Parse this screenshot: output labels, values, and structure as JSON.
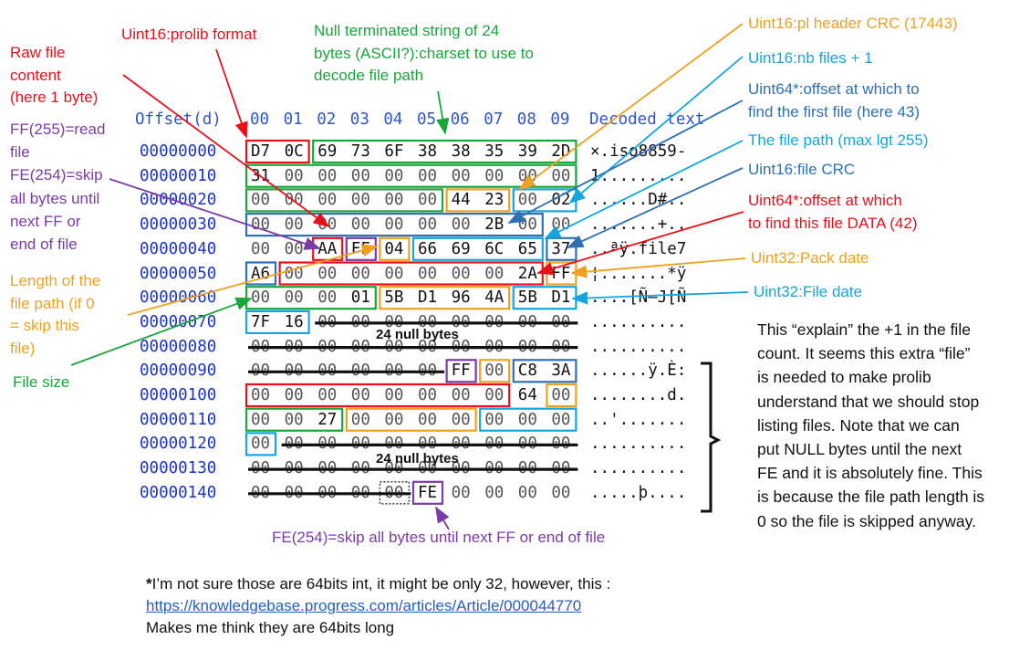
{
  "header": {
    "offset": "Offset(d)",
    "cols": [
      "00",
      "01",
      "02",
      "03",
      "04",
      "05",
      "06",
      "07",
      "08",
      "09"
    ],
    "decoded": "Decoded text"
  },
  "rows": [
    {
      "off": "00000000",
      "bytes": [
        "D7",
        "0C",
        "69",
        "73",
        "6F",
        "38",
        "38",
        "35",
        "39",
        "2D"
      ],
      "text": "×.iso8859-"
    },
    {
      "off": "00000010",
      "bytes": [
        "31",
        "00",
        "00",
        "00",
        "00",
        "00",
        "00",
        "00",
        "00",
        "00"
      ],
      "text": "1........."
    },
    {
      "off": "00000020",
      "bytes": [
        "00",
        "00",
        "00",
        "00",
        "00",
        "00",
        "44",
        "23",
        "00",
        "02"
      ],
      "text": "......D#.."
    },
    {
      "off": "00000030",
      "bytes": [
        "00",
        "00",
        "00",
        "00",
        "00",
        "00",
        "00",
        "2B",
        "00",
        "00"
      ],
      "text": ".......+.."
    },
    {
      "off": "00000040",
      "bytes": [
        "00",
        "00",
        "AA",
        "FF",
        "04",
        "66",
        "69",
        "6C",
        "65",
        "37"
      ],
      "text": "..ªÿ.file7"
    },
    {
      "off": "00000050",
      "bytes": [
        "A6",
        "00",
        "00",
        "00",
        "00",
        "00",
        "00",
        "00",
        "2A",
        "FF"
      ],
      "text": "¦.......*ÿ"
    },
    {
      "off": "00000060",
      "bytes": [
        "00",
        "00",
        "00",
        "01",
        "5B",
        "D1",
        "96",
        "4A",
        "5B",
        "D1"
      ],
      "text": "....[Ñ–J[Ñ"
    },
    {
      "off": "00000070",
      "bytes": [
        "7F",
        "16",
        "00",
        "00",
        "00",
        "00",
        "00",
        "00",
        "00",
        "00"
      ],
      "text": ".........."
    },
    {
      "off": "00000080",
      "bytes": [
        "00",
        "00",
        "00",
        "00",
        "00",
        "00",
        "00",
        "00",
        "00",
        "00"
      ],
      "text": ".........."
    },
    {
      "off": "00000090",
      "bytes": [
        "00",
        "00",
        "00",
        "00",
        "00",
        "00",
        "FF",
        "00",
        "C8",
        "3A"
      ],
      "text": "......ÿ.È:"
    },
    {
      "off": "00000100",
      "bytes": [
        "00",
        "00",
        "00",
        "00",
        "00",
        "00",
        "00",
        "00",
        "64",
        "00"
      ],
      "text": "........d."
    },
    {
      "off": "00000110",
      "bytes": [
        "00",
        "00",
        "27",
        "00",
        "00",
        "00",
        "00",
        "00",
        "00",
        "00"
      ],
      "text": "..'......."
    },
    {
      "off": "00000120",
      "bytes": [
        "00",
        "00",
        "00",
        "00",
        "00",
        "00",
        "00",
        "00",
        "00",
        "00"
      ],
      "text": ".........."
    },
    {
      "off": "00000130",
      "bytes": [
        "00",
        "00",
        "00",
        "00",
        "00",
        "00",
        "00",
        "00",
        "00",
        "00"
      ],
      "text": ".........."
    },
    {
      "off": "00000140",
      "bytes": [
        "00",
        "00",
        "00",
        "00",
        "00",
        "FE",
        "00",
        "00",
        "00",
        "00"
      ],
      "text": ".....þ...."
    }
  ],
  "null_labels": [
    "24 null bytes",
    "24 null bytes"
  ],
  "annotations": {
    "raw_file": [
      "Raw file",
      "content",
      "(here 1 byte)"
    ],
    "prolib_format": "Uint16:prolib format",
    "charset": [
      "Null terminated string of 24",
      "bytes (ASCII?):charset to use to",
      "decode file path"
    ],
    "ff_read": [
      "FF(255)=read",
      "file",
      "FE(254)=skip",
      "all bytes until",
      "next FF or",
      "end of file"
    ],
    "length_path": [
      "Length of the",
      "file path (if 0",
      "= skip this",
      "file)"
    ],
    "file_size": "File size",
    "pl_header_crc": "Uint16:pl header CRC (17443)",
    "nb_files": "Uint16:nb files + 1",
    "offset_first": [
      "Uint64*:offset at which to",
      "find the first file (here 43)"
    ],
    "file_path": "The file path (max lgt 255)",
    "file_crc": "Uint16:file CRC",
    "offset_data": [
      "Uint64*:offset at which",
      "to find this file DATA (42)"
    ],
    "pack_date": "Uint32:Pack date",
    "file_date": "Uint32:File date",
    "fe_bottom": "FE(254)=skip all bytes until next FF or end of file"
  },
  "note": "This “explain” the +1 in the file count. It seems this extra “file” is needed to make prolib understand that we should stop listing files. Note that we can put NULL bytes until the next FE and it is absolutely fine. This is because the file path length is 0 so the file is skipped anyway.",
  "footnote": {
    "star": "*",
    "line1": "I’m not sure those are 64bits int, it might be only 32, however, this :",
    "link": "https://knowledgebase.progress.com/articles/Article/000044770",
    "line3": "Makes me think they are 64bits long"
  },
  "colors": {
    "red": "#e8101a",
    "green": "#1aa53a",
    "orange": "#f0a020",
    "sky": "#14a5e0",
    "steel": "#2f6fb3",
    "purple": "#7a3aa8",
    "hex_header": "#2f56c9",
    "offset": "#1b33c8"
  }
}
